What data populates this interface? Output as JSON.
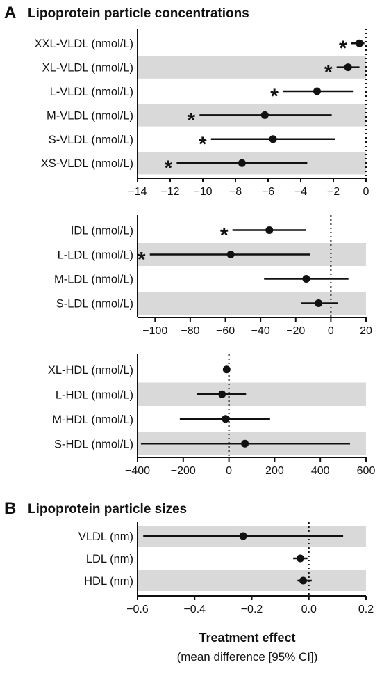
{
  "figure": {
    "panel_a": {
      "letter": "A",
      "title": "Lipoprotein particle concentrations"
    },
    "panel_b": {
      "letter": "B",
      "title": "Lipoprotein particle sizes"
    },
    "xlabel": "Treatment effect",
    "xlabel_sub": "(mean difference  [95% CI])"
  },
  "chart_data": [
    {
      "type": "forest",
      "panel": "A",
      "rows": [
        {
          "label": "XXL-VLDL (nmol/L)",
          "mean": -0.4,
          "lo": -0.9,
          "hi": -0.1,
          "sig": true,
          "shaded": false
        },
        {
          "label": "XL-VLDL (nmol/L)",
          "mean": -1.1,
          "lo": -1.8,
          "hi": -0.4,
          "sig": true,
          "shaded": true
        },
        {
          "label": "L-VLDL (nmol/L)",
          "mean": -3.0,
          "lo": -5.1,
          "hi": -0.8,
          "sig": true,
          "shaded": false
        },
        {
          "label": "M-VLDL (nmol/L)",
          "mean": -6.2,
          "lo": -10.2,
          "hi": -2.1,
          "sig": true,
          "shaded": true
        },
        {
          "label": "S-VLDL (nmol/L)",
          "mean": -5.7,
          "lo": -9.5,
          "hi": -1.9,
          "sig": true,
          "shaded": false
        },
        {
          "label": "XS-VLDL (nmol/L)",
          "mean": -7.6,
          "lo": -11.6,
          "hi": -3.6,
          "sig": true,
          "shaded": true
        }
      ],
      "xlim": [
        -14,
        0
      ],
      "xticks": [
        -14,
        -12,
        -10,
        -8,
        -6,
        -4,
        -2,
        0
      ]
    },
    {
      "type": "forest",
      "panel": "A",
      "rows": [
        {
          "label": "IDL (nmol/L)",
          "mean": -35,
          "lo": -56,
          "hi": -14,
          "sig": true,
          "shaded": false
        },
        {
          "label": "L-LDL (nmol/L)",
          "mean": -57,
          "lo": -103,
          "hi": -12,
          "sig": true,
          "shaded": true
        },
        {
          "label": "M-LDL (nmol/L)",
          "mean": -14,
          "lo": -38,
          "hi": 10,
          "sig": false,
          "shaded": false
        },
        {
          "label": "S-LDL (nmol/L)",
          "mean": -7,
          "lo": -17,
          "hi": 4,
          "sig": false,
          "shaded": true
        }
      ],
      "xlim": [
        -110,
        20
      ],
      "xticks": [
        -100,
        -80,
        -60,
        -40,
        -20,
        0,
        20
      ]
    },
    {
      "type": "forest",
      "panel": "A",
      "rows": [
        {
          "label": "XL-HDL (nmol/L)",
          "mean": -10,
          "lo": -20,
          "hi": 0,
          "sig": false,
          "shaded": false
        },
        {
          "label": "L-HDL (nmol/L)",
          "mean": -30,
          "lo": -140,
          "hi": 75,
          "sig": false,
          "shaded": true
        },
        {
          "label": "M-HDL (nmol/L)",
          "mean": -15,
          "lo": -215,
          "hi": 180,
          "sig": false,
          "shaded": false
        },
        {
          "label": "S-HDL (nmol/L)",
          "mean": 70,
          "lo": -385,
          "hi": 530,
          "sig": false,
          "shaded": true
        }
      ],
      "xlim": [
        -400,
        600
      ],
      "xticks": [
        -400,
        -200,
        0,
        200,
        400,
        600
      ]
    },
    {
      "type": "forest",
      "panel": "B",
      "rows": [
        {
          "label": "VLDL (nm)",
          "mean": -0.23,
          "lo": -0.58,
          "hi": 0.12,
          "sig": false,
          "shaded": true
        },
        {
          "label": "LDL (nm)",
          "mean": -0.03,
          "lo": -0.055,
          "hi": -0.005,
          "sig": false,
          "shaded": false
        },
        {
          "label": "HDL (nm)",
          "mean": -0.02,
          "lo": -0.04,
          "hi": 0.01,
          "sig": false,
          "shaded": true
        }
      ],
      "xlim": [
        -0.6,
        0.2
      ],
      "xticks": [
        -0.6,
        -0.4,
        -0.2,
        0.0,
        0.2
      ],
      "xticklabels": [
        "−0.6",
        "−0.4",
        "−0.2",
        "0.0",
        "0.2"
      ]
    }
  ],
  "style": {
    "shade_color": "#d9d9d9",
    "line_color": "#111111",
    "significance_marker": "*"
  }
}
